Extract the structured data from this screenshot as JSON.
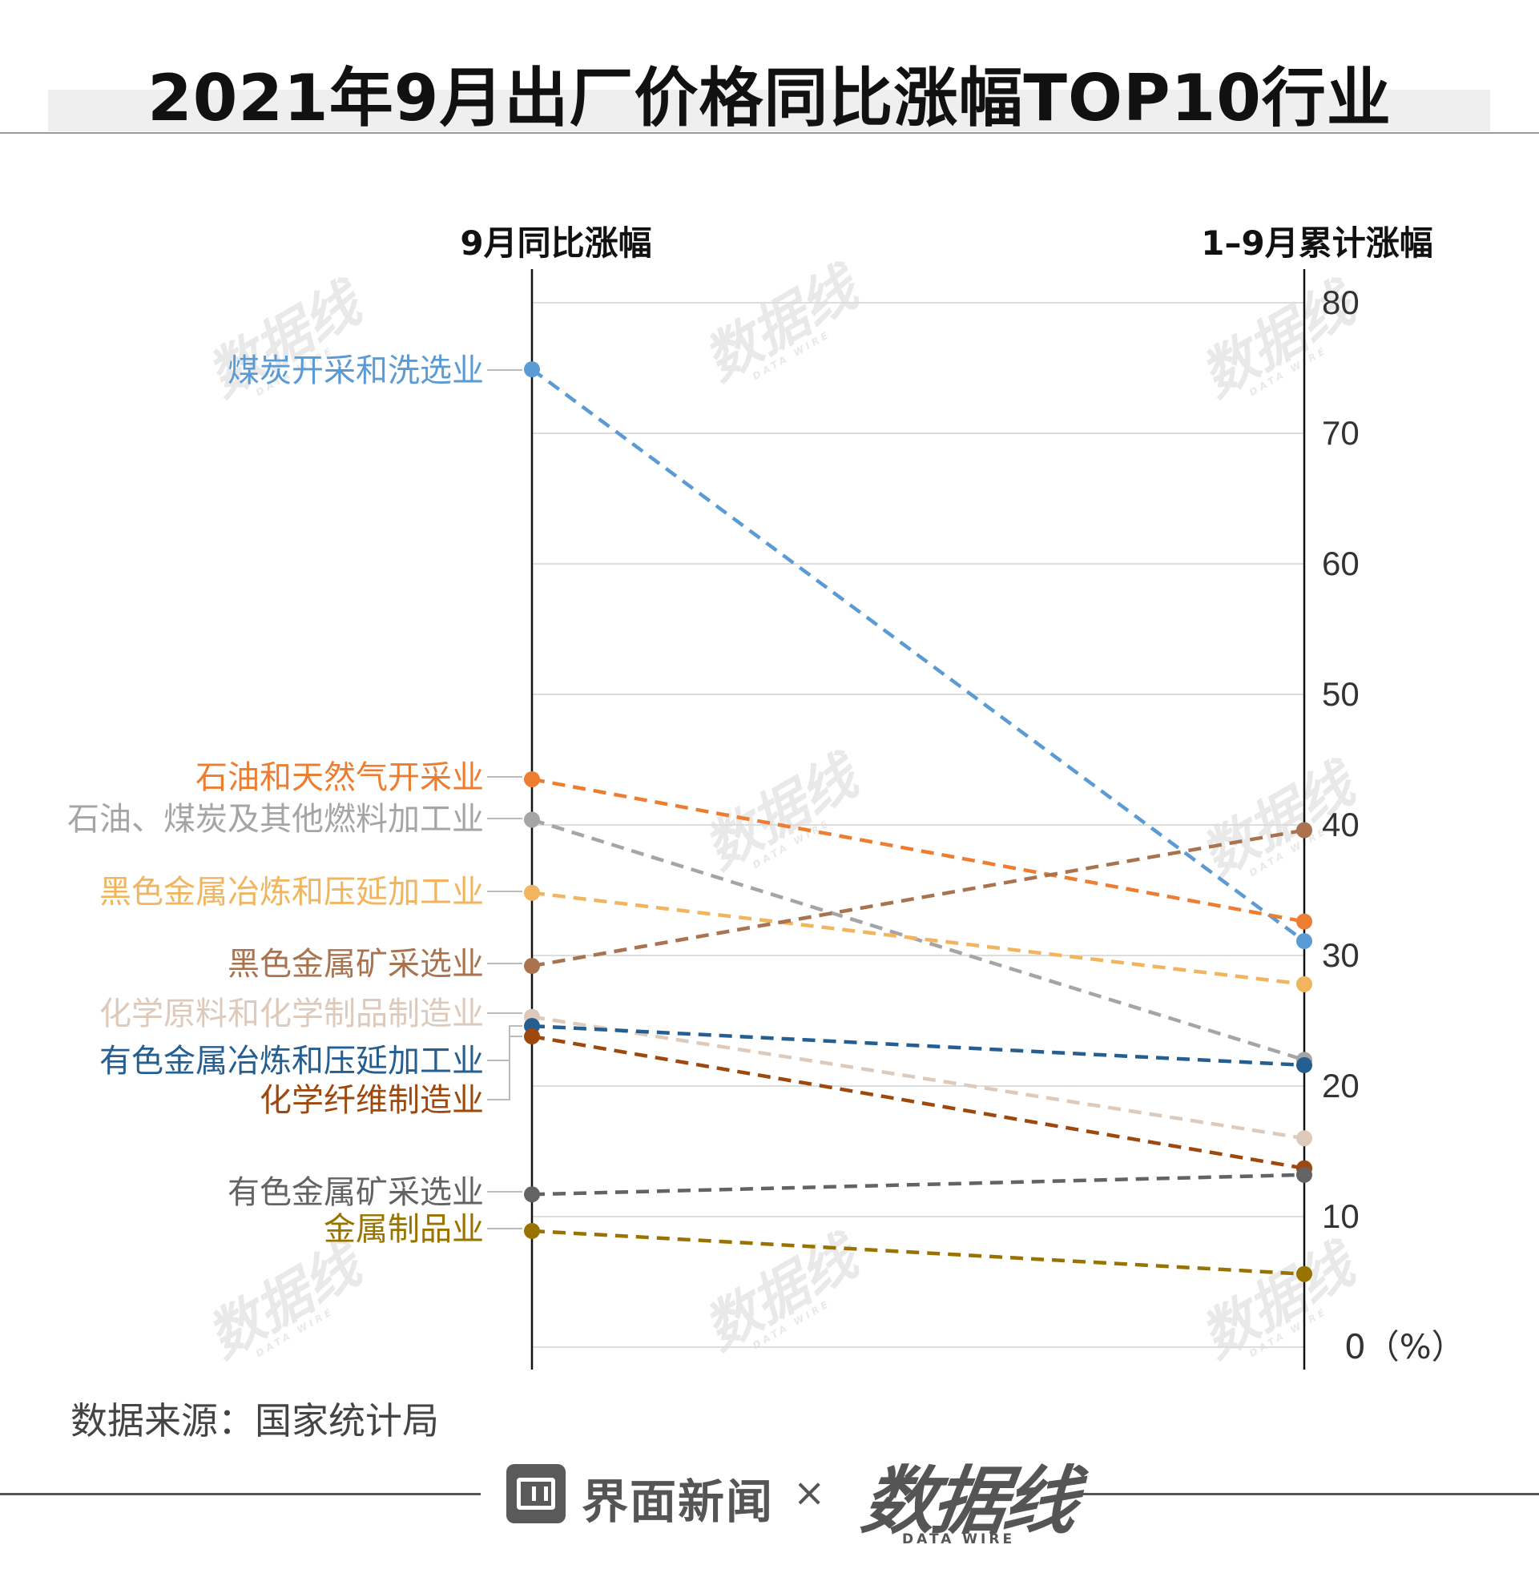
{
  "title": "2021年9月出厂价格同比涨幅TOP10行业",
  "source": "数据来源：国家统计局",
  "footer": {
    "brand1": "界面新闻",
    "separator": "×",
    "brand2": "数据线",
    "brand2_sub": "DATA WIRE"
  },
  "chart_data": {
    "type": "slope",
    "left_axis_label": "9月同比涨幅",
    "right_axis_label": "1–9月累计涨幅",
    "unit_label": "0（%）",
    "ylim": [
      0,
      80
    ],
    "yticks": [
      10,
      20,
      30,
      40,
      50,
      60,
      70,
      80
    ],
    "grid": true,
    "series": [
      {
        "name": "煤炭开采和洗选业",
        "left": 74.9,
        "right": 31.1,
        "color": "#5b9bd5"
      },
      {
        "name": "石油和天然气开采业",
        "left": 43.5,
        "right": 32.6,
        "color": "#ed7d31"
      },
      {
        "name": "石油、煤炭及其他燃料加工业",
        "left": 40.4,
        "right": 22.0,
        "color": "#a5a5a5"
      },
      {
        "name": "黑色金属冶炼和压延加工业",
        "left": 34.8,
        "right": 27.8,
        "color": "#f0b55e"
      },
      {
        "name": "黑色金属矿采选业",
        "left": 29.2,
        "right": 39.6,
        "color": "#a8734e"
      },
      {
        "name": "化学原料和化学制品制造业",
        "left": 25.3,
        "right": 16.0,
        "color": "#ddcabb"
      },
      {
        "name": "有色金属冶炼和压延加工业",
        "left": 24.6,
        "right": 21.6,
        "color": "#255e91"
      },
      {
        "name": "化学纤维制造业",
        "left": 23.8,
        "right": 13.7,
        "color": "#9e480e"
      },
      {
        "name": "有色金属矿采选业",
        "left": 11.7,
        "right": 13.2,
        "color": "#636363"
      },
      {
        "name": "金属制品业",
        "left": 8.9,
        "right": 5.6,
        "color": "#997300"
      }
    ]
  }
}
